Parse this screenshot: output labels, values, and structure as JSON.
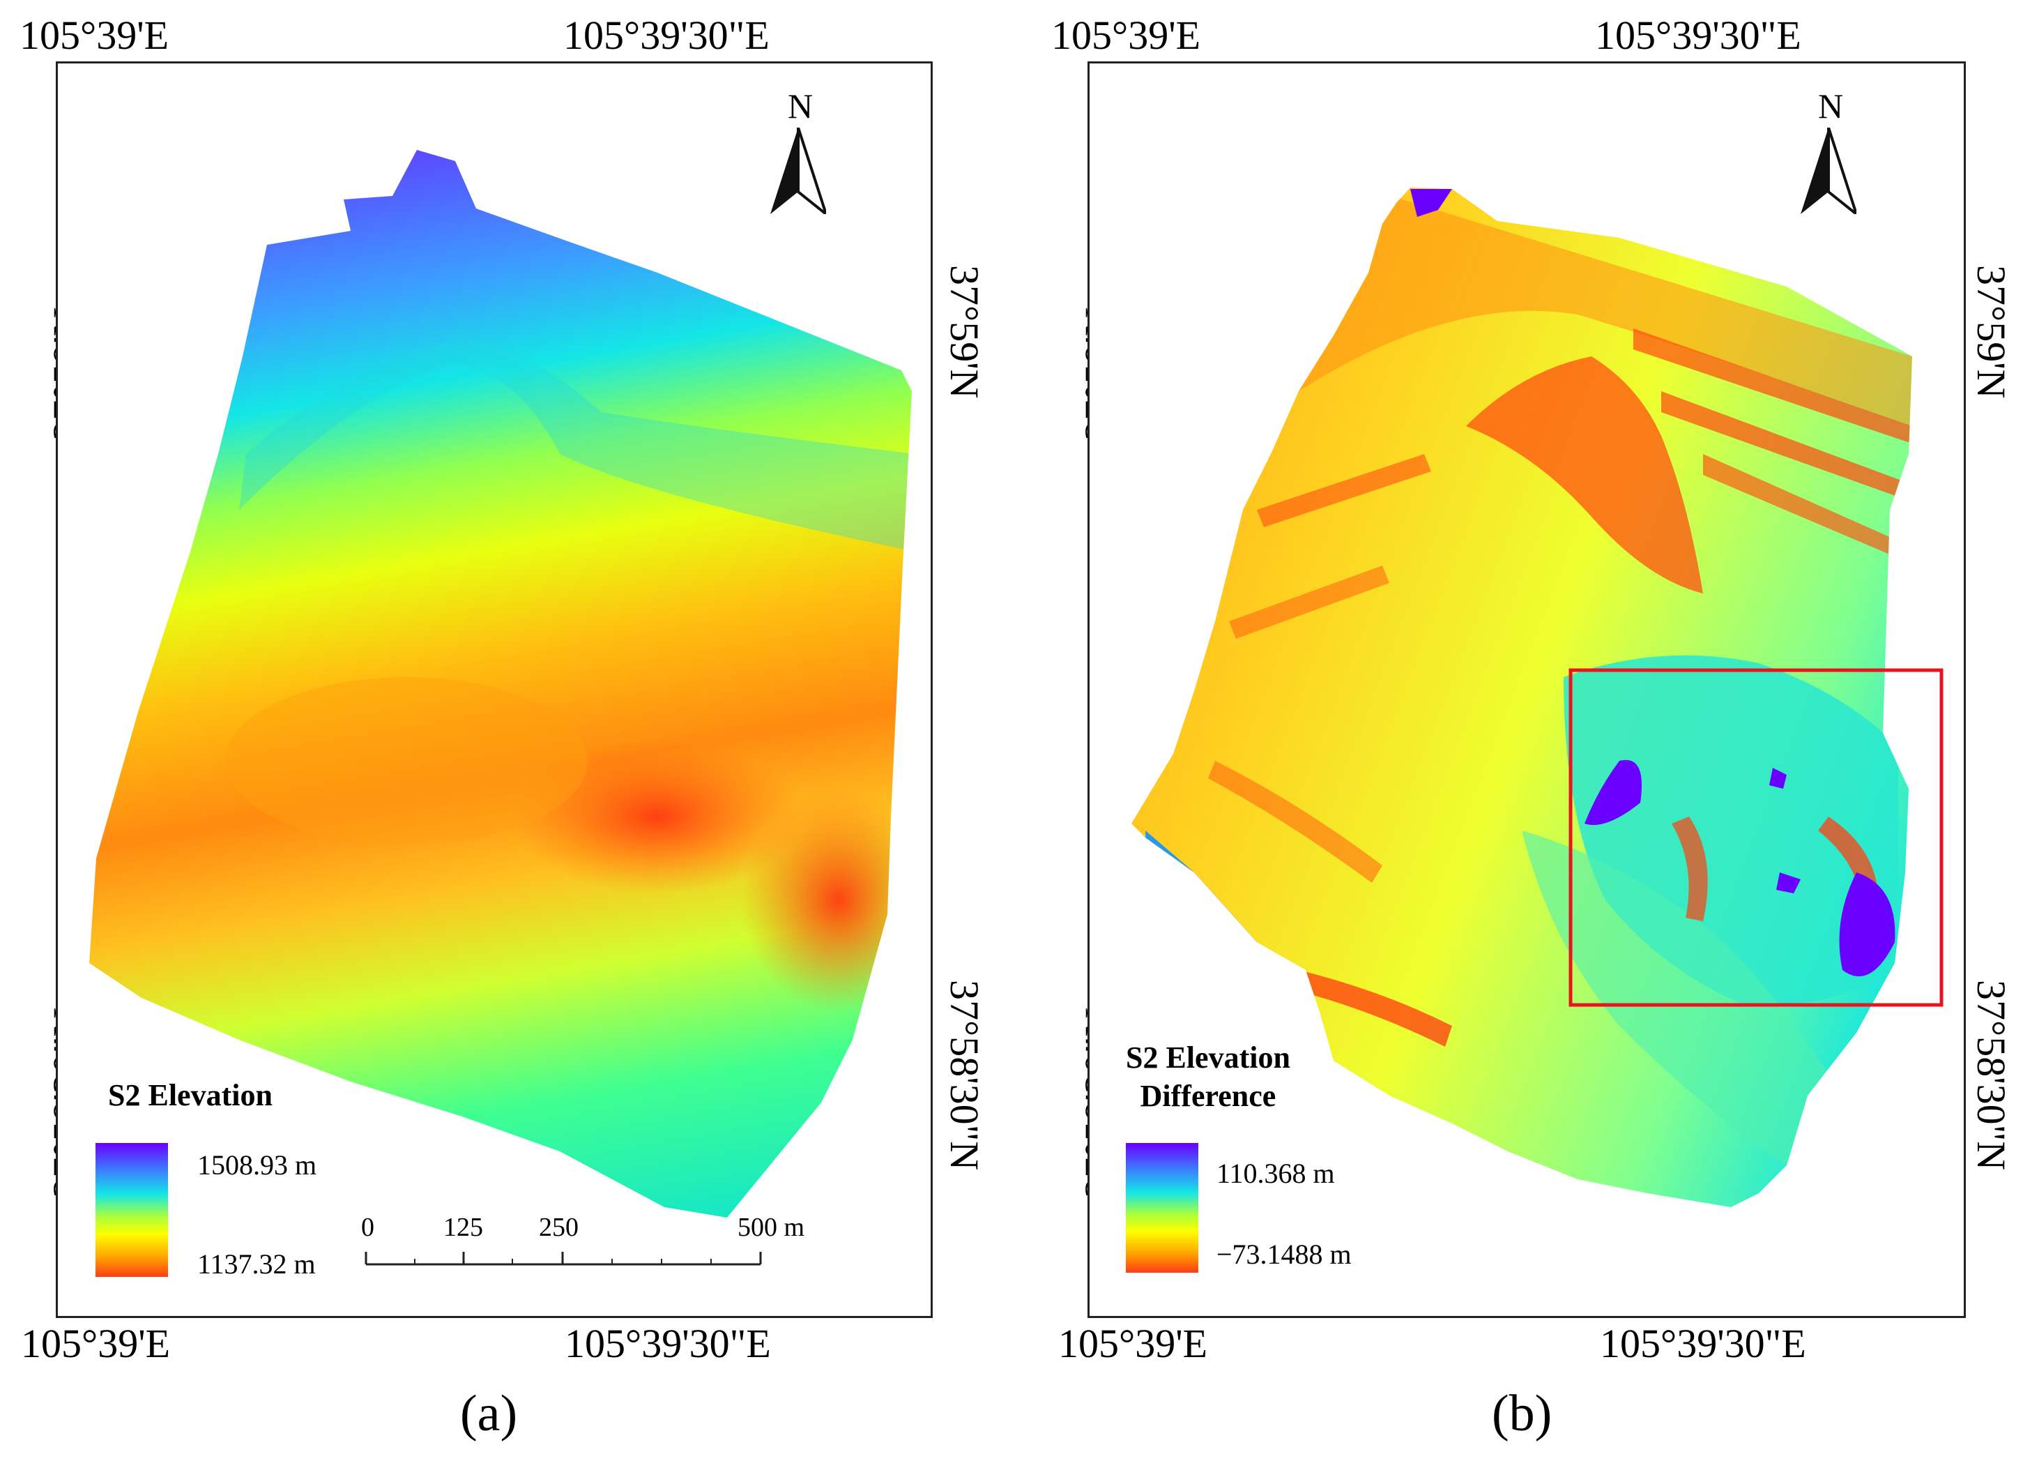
{
  "panel_a": {
    "caption": "(a)",
    "top_lon_left": "105°39'E",
    "top_lon_right": "105°39'30\"E",
    "bottom_lon_left": "105°39'E",
    "bottom_lon_right": "105°39'30\"E",
    "lat_upper": "37°59'N",
    "lat_lower": "37°58'30\"N",
    "north": "N",
    "legend": {
      "title": "S2 Elevation",
      "max": "1508.93 m",
      "min": "1137.32 m"
    },
    "scale": {
      "ticks": [
        "0",
        "125",
        "250",
        "500 m"
      ]
    }
  },
  "panel_b": {
    "caption": "(b)",
    "top_lon_left": "105°39'E",
    "top_lon_right": "105°39'30\"E",
    "bottom_lon_left": "105°39'E",
    "bottom_lon_right": "105°39'30\"E",
    "lat_upper": "37°59'N",
    "lat_lower": "37°58'30\"N",
    "north": "N",
    "legend": {
      "title_line1": "S2 Elevation",
      "title_line2": "Difference",
      "max": "110.368 m",
      "min": "−73.1488 m"
    }
  },
  "colors": {
    "ramp": [
      "#6a00ff",
      "#3c7cff",
      "#14e6e6",
      "#aaff3c",
      "#ffff00",
      "#ffa500",
      "#ff3c14"
    ],
    "highlight_box": "#e8141e"
  }
}
